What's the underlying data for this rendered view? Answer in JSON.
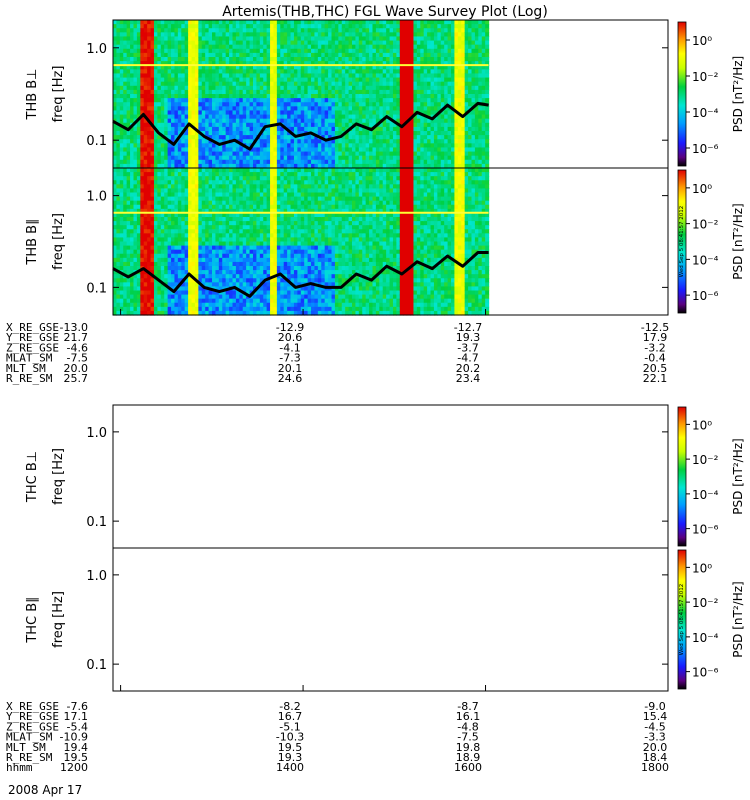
{
  "title": "Artemis(THB,THC) FGL Wave Survey Plot (Log)",
  "colors": {
    "frame": "#000000",
    "yellow_line": "#ffff33",
    "contour": "#000000"
  },
  "colorbar": {
    "label": "PSD [nT²/Hz]",
    "scale": "log",
    "range": [
      1e-07,
      10.0
    ],
    "ticks": [
      "10⁰",
      "10⁻²",
      "10⁻⁴",
      "10⁻⁶"
    ],
    "tick_exponents": [
      0,
      -2,
      -4,
      -6
    ]
  },
  "panels": [
    {
      "id": "thb-bperp",
      "ylabel": "THB B⊥",
      "axis_label": "freq [Hz]",
      "has_data": true,
      "yscale": "log",
      "yticks": [
        "1.0",
        "0.1"
      ],
      "ytick_values": [
        1.0,
        0.1
      ],
      "ylim": [
        0.05,
        2.0
      ],
      "stamp": ""
    },
    {
      "id": "thb-bpar",
      "ylabel": "THB B∥",
      "axis_label": "freq [Hz]",
      "has_data": true,
      "yscale": "log",
      "yticks": [
        "1.0",
        "0.1"
      ],
      "ytick_values": [
        1.0,
        0.1
      ],
      "ylim": [
        0.05,
        2.0
      ],
      "stamp": "Wed Sep  5 08:41:57 2012"
    },
    {
      "id": "thc-bperp",
      "ylabel": "THC B⊥",
      "axis_label": "freq [Hz]",
      "has_data": false,
      "yscale": "log",
      "yticks": [
        "1.0",
        "0.1"
      ],
      "ytick_values": [
        1.0,
        0.1
      ],
      "ylim": [
        0.05,
        2.0
      ],
      "stamp": ""
    },
    {
      "id": "thc-bpar",
      "ylabel": "THC B∥",
      "axis_label": "freq [Hz]",
      "has_data": false,
      "yscale": "log",
      "yticks": [
        "1.0",
        "0.1"
      ],
      "ytick_values": [
        1.0,
        0.1
      ],
      "ylim": [
        0.05,
        2.0
      ],
      "stamp": "Wed Sep  5 08:41:57 2012"
    }
  ],
  "orbit_table_thb": {
    "rows": [
      {
        "label": "X_RE_GSE",
        "values": [
          "-13.0",
          "-12.9",
          "-12.7",
          "-12.5"
        ]
      },
      {
        "label": "Y_RE_GSE",
        "values": [
          "21.7",
          "20.6",
          "19.3",
          "17.9"
        ]
      },
      {
        "label": "Z_RE_GSE",
        "values": [
          "-4.6",
          "-4.1",
          "-3.7",
          "-3.2"
        ]
      },
      {
        "label": "MLAT_SM",
        "values": [
          "-7.5",
          "-7.3",
          "-4.7",
          "-0.4"
        ]
      },
      {
        "label": "MLT_SM",
        "values": [
          "20.0",
          "20.1",
          "20.2",
          "20.5"
        ]
      },
      {
        "label": "R_RE_SM",
        "values": [
          "25.7",
          "24.6",
          "23.4",
          "22.1"
        ]
      }
    ]
  },
  "orbit_table_thc": {
    "rows": [
      {
        "label": "X_RE_GSE",
        "values": [
          "-7.6",
          "-8.2",
          "-8.7",
          "-9.0"
        ]
      },
      {
        "label": "Y_RE_GSE",
        "values": [
          "17.1",
          "16.7",
          "16.1",
          "15.4"
        ]
      },
      {
        "label": "Z_RE_GSE",
        "values": [
          "-5.4",
          "-5.1",
          "-4.8",
          "-4.5"
        ]
      },
      {
        "label": "MLAT_SM",
        "values": [
          "-10.9",
          "-10.3",
          "-7.5",
          "-3.3"
        ]
      },
      {
        "label": "MLT_SM",
        "values": [
          "19.4",
          "19.5",
          "19.8",
          "20.0"
        ]
      },
      {
        "label": "R_RE_SM",
        "values": [
          "19.5",
          "19.3",
          "18.9",
          "18.4"
        ]
      },
      {
        "label": "hhmm",
        "values": [
          "1200",
          "1400",
          "1600",
          "1800"
        ]
      }
    ]
  },
  "date_label": "2008 Apr 17",
  "chart_data": {
    "type": "heatmap",
    "title": "Artemis(THB,THC) FGL Wave Survey Plot (Log)",
    "x": {
      "label": "hhmm",
      "ticks": [
        "1200",
        "1400",
        "1600",
        "1800"
      ],
      "range": [
        "11:55",
        "18:00"
      ]
    },
    "y": {
      "label": "freq [Hz]",
      "scale": "log",
      "range": [
        0.05,
        2.0
      ]
    },
    "z": {
      "label": "PSD [nT²/Hz]",
      "scale": "log",
      "range": [
        1e-07,
        10.0
      ]
    },
    "data_time_extent": [
      "11:55",
      "16:02"
    ],
    "background_level": 0.001,
    "yellow_line_freq": 0.65,
    "hot_bands": [
      {
        "start": "12:12",
        "end": "12:22",
        "psd": 10
      },
      {
        "start": "12:45",
        "end": "12:52",
        "psd": 0.1
      },
      {
        "start": "13:38",
        "end": "13:43",
        "psd": 0.1
      },
      {
        "start": "15:03",
        "end": "15:12",
        "psd": 30
      },
      {
        "start": "15:40",
        "end": "15:46",
        "psd": 0.1
      }
    ],
    "low_psd_region": {
      "start": "12:30",
      "end": "14:20",
      "freq_max": 0.3,
      "psd": 1e-05
    },
    "series": [
      {
        "name": "",
        "panel": "THB B⊥",
        "times": [
          "11:55",
          "12:05",
          "12:15",
          "12:25",
          "12:35",
          "12:45",
          "12:55",
          "13:05",
          "13:15",
          "13:25",
          "13:35",
          "13:45",
          "13:55",
          "14:05",
          "14:15",
          "14:25",
          "14:35",
          "14:45",
          "14:55",
          "15:05",
          "15:15",
          "15:25",
          "15:35",
          "15:45",
          "15:55",
          "16:02"
        ],
        "freq_hz": [
          0.16,
          0.13,
          0.19,
          0.12,
          0.09,
          0.15,
          0.11,
          0.09,
          0.1,
          0.08,
          0.14,
          0.15,
          0.11,
          0.12,
          0.1,
          0.11,
          0.15,
          0.13,
          0.18,
          0.14,
          0.2,
          0.17,
          0.24,
          0.18,
          0.25,
          0.24
        ]
      },
      {
        "name": "",
        "panel": "THB B∥",
        "times": [
          "11:55",
          "12:05",
          "12:15",
          "12:25",
          "12:35",
          "12:45",
          "12:55",
          "13:05",
          "13:15",
          "13:25",
          "13:35",
          "13:45",
          "13:55",
          "14:05",
          "14:15",
          "14:25",
          "14:35",
          "14:45",
          "14:55",
          "15:05",
          "15:15",
          "15:25",
          "15:35",
          "15:45",
          "15:55",
          "16:02"
        ],
        "freq_hz": [
          0.16,
          0.13,
          0.16,
          0.12,
          0.09,
          0.14,
          0.1,
          0.09,
          0.1,
          0.08,
          0.12,
          0.14,
          0.1,
          0.11,
          0.1,
          0.1,
          0.14,
          0.12,
          0.17,
          0.14,
          0.19,
          0.16,
          0.22,
          0.17,
          0.24,
          0.24
        ]
      }
    ]
  }
}
